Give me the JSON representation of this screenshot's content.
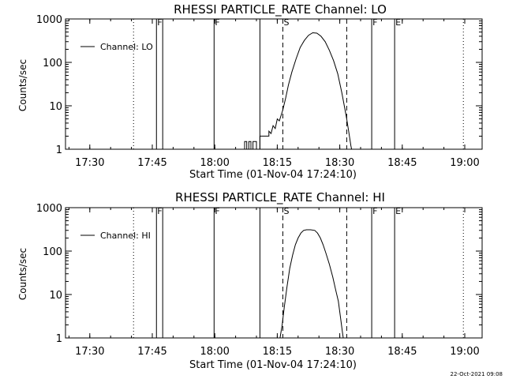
{
  "chart_data": [
    {
      "type": "line",
      "title": "RHESSI PARTICLE_RATE Channel: LO",
      "xlabel": "Start Time (01-Nov-04 17:24:10)",
      "ylabel": "Counts/sec",
      "legend": {
        "label": "Channel: LO",
        "position": "top-left"
      },
      "yscale": "log",
      "ylim": [
        1,
        1000
      ],
      "xlim": [
        "17:24:10",
        "19:04:10"
      ],
      "x_ticks": [
        "17:30",
        "17:45",
        "18:00",
        "18:15",
        "18:30",
        "18:45",
        "19:00"
      ],
      "y_ticks": [
        "1",
        "10",
        "100",
        "1000"
      ],
      "grid": false,
      "markers": [
        {
          "label": "",
          "time": "17:40:30",
          "style": "dotted"
        },
        {
          "label": "F",
          "time": "17:46:00",
          "style": "solid"
        },
        {
          "label": "",
          "time": "17:47:30",
          "style": "solid"
        },
        {
          "label": "F",
          "time": "17:59:50",
          "style": "solid"
        },
        {
          "label": "",
          "time": "18:10:50",
          "style": "solid"
        },
        {
          "label": "S",
          "time": "18:16:20",
          "style": "dashed"
        },
        {
          "label": "",
          "time": "18:31:40",
          "style": "dashed"
        },
        {
          "label": "F",
          "time": "18:37:40",
          "style": "solid"
        },
        {
          "label": "E",
          "time": "18:43:10",
          "style": "solid"
        },
        {
          "label": "",
          "time": "18:59:40",
          "style": "dotted"
        }
      ],
      "series": [
        {
          "name": "Channel: LO",
          "points": [
            [
              "18:07:10",
              0.9
            ],
            [
              "18:07:10",
              1.5
            ],
            [
              "18:07:40",
              1.5
            ],
            [
              "18:07:40",
              0.9
            ],
            [
              "18:08:10",
              0.9
            ],
            [
              "18:08:10",
              1.5
            ],
            [
              "18:08:40",
              1.5
            ],
            [
              "18:08:40",
              0.9
            ],
            [
              "18:09:10",
              0.9
            ],
            [
              "18:09:10",
              1.5
            ],
            [
              "18:10:00",
              1.5
            ],
            [
              "18:10:00",
              0.9
            ],
            [
              "18:10:50",
              0.9
            ],
            [
              "18:10:50",
              2.0
            ],
            [
              "18:13:00",
              2.0
            ],
            [
              "18:13:00",
              2.6
            ],
            [
              "18:13:30",
              2.3
            ],
            [
              "18:14:00",
              3.5
            ],
            [
              "18:14:30",
              3.0
            ],
            [
              "18:15:00",
              5.0
            ],
            [
              "18:15:30",
              4.5
            ],
            [
              "18:16:20",
              8.0
            ],
            [
              "18:17:00",
              15
            ],
            [
              "18:17:40",
              30
            ],
            [
              "18:18:30",
              60
            ],
            [
              "18:19:30",
              120
            ],
            [
              "18:20:30",
              220
            ],
            [
              "18:21:30",
              320
            ],
            [
              "18:22:30",
              420
            ],
            [
              "18:23:30",
              480
            ],
            [
              "18:24:30",
              470
            ],
            [
              "18:25:30",
              400
            ],
            [
              "18:26:30",
              300
            ],
            [
              "18:27:30",
              190
            ],
            [
              "18:28:30",
              110
            ],
            [
              "18:29:30",
              55
            ],
            [
              "18:30:30",
              20
            ],
            [
              "18:31:10",
              9
            ],
            [
              "18:31:40",
              5
            ],
            [
              "18:32:10",
              2.5
            ],
            [
              "18:32:40",
              1.2
            ],
            [
              "18:32:50",
              0.9
            ]
          ]
        }
      ]
    },
    {
      "type": "line",
      "title": "RHESSI PARTICLE_RATE Channel: HI",
      "xlabel": "Start Time (01-Nov-04 17:24:10)",
      "ylabel": "Counts/sec",
      "legend": {
        "label": "Channel: HI",
        "position": "top-left"
      },
      "yscale": "log",
      "ylim": [
        1,
        1000
      ],
      "xlim": [
        "17:24:10",
        "19:04:10"
      ],
      "x_ticks": [
        "17:30",
        "17:45",
        "18:00",
        "18:15",
        "18:30",
        "18:45",
        "19:00"
      ],
      "y_ticks": [
        "1",
        "10",
        "100",
        "1000"
      ],
      "grid": false,
      "markers": [
        {
          "label": "",
          "time": "17:40:30",
          "style": "dotted"
        },
        {
          "label": "F",
          "time": "17:46:00",
          "style": "solid"
        },
        {
          "label": "",
          "time": "17:47:30",
          "style": "solid"
        },
        {
          "label": "F",
          "time": "17:59:50",
          "style": "solid"
        },
        {
          "label": "",
          "time": "18:10:50",
          "style": "solid"
        },
        {
          "label": "S",
          "time": "18:16:20",
          "style": "dashed"
        },
        {
          "label": "",
          "time": "18:31:40",
          "style": "dashed"
        },
        {
          "label": "F",
          "time": "18:37:40",
          "style": "solid"
        },
        {
          "label": "E",
          "time": "18:43:10",
          "style": "solid"
        },
        {
          "label": "",
          "time": "18:59:40",
          "style": "dotted"
        }
      ],
      "series": [
        {
          "name": "Channel: HI",
          "points": [
            [
              "18:15:40",
              0.9
            ],
            [
              "18:16:10",
              2.0
            ],
            [
              "18:16:40",
              5.0
            ],
            [
              "18:17:20",
              15
            ],
            [
              "18:18:00",
              40
            ],
            [
              "18:18:40",
              80
            ],
            [
              "18:19:20",
              140
            ],
            [
              "18:20:00",
              200
            ],
            [
              "18:20:40",
              260
            ],
            [
              "18:21:20",
              300
            ],
            [
              "18:22:00",
              310
            ],
            [
              "18:23:00",
              310
            ],
            [
              "18:24:00",
              300
            ],
            [
              "18:24:40",
              260
            ],
            [
              "18:25:20",
              200
            ],
            [
              "18:26:00",
              140
            ],
            [
              "18:26:40",
              90
            ],
            [
              "18:27:30",
              50
            ],
            [
              "18:28:20",
              25
            ],
            [
              "18:29:00",
              13
            ],
            [
              "18:29:40",
              7
            ],
            [
              "18:30:10",
              3.0
            ],
            [
              "18:30:40",
              1.3
            ],
            [
              "18:30:50",
              0.9
            ]
          ]
        }
      ]
    }
  ],
  "footer": {
    "timestamp": "22-Oct-2021 09:08"
  }
}
